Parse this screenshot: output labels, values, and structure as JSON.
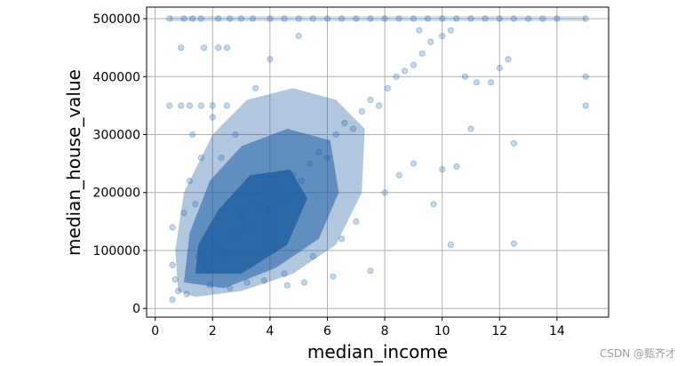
{
  "chart_data": {
    "type": "scatter",
    "title": "",
    "xlabel": "median_income",
    "ylabel": "median_house_value",
    "xlim": [
      -0.3,
      15.8
    ],
    "ylim": [
      -15000,
      520000
    ],
    "xticks": [
      0,
      2,
      4,
      6,
      8,
      10,
      12,
      14
    ],
    "yticks": [
      0,
      100000,
      200000,
      300000,
      400000,
      500000
    ],
    "grid": true,
    "legend": "none",
    "marker_color": "#1f5fa3",
    "marker_alpha": 0.1,
    "series": [
      {
        "points": [
          [
            0.5,
            500000
          ],
          [
            1.0,
            500000
          ],
          [
            1.3,
            500000
          ],
          [
            1.6,
            500000
          ],
          [
            2.2,
            500000
          ],
          [
            2.6,
            500000
          ],
          [
            3.0,
            500000
          ],
          [
            3.4,
            500000
          ],
          [
            4.0,
            500000
          ],
          [
            4.5,
            500000
          ],
          [
            5.0,
            500000
          ],
          [
            5.5,
            500000
          ],
          [
            6.0,
            500000
          ],
          [
            6.5,
            500000
          ],
          [
            7.0,
            500000
          ],
          [
            7.5,
            500000
          ],
          [
            8.0,
            500000
          ],
          [
            8.5,
            500000
          ],
          [
            9.0,
            500000
          ],
          [
            9.5,
            500000
          ],
          [
            10.0,
            500000
          ],
          [
            10.5,
            500000
          ],
          [
            11.0,
            500000
          ],
          [
            11.5,
            500000
          ],
          [
            12.0,
            500000
          ],
          [
            12.5,
            500000
          ],
          [
            13.0,
            500000
          ],
          [
            13.5,
            500000
          ],
          [
            14.0,
            500000
          ],
          [
            15.0,
            500000
          ],
          [
            0.9,
            450000
          ],
          [
            1.7,
            450000
          ],
          [
            2.2,
            450000
          ],
          [
            2.5,
            450000
          ],
          [
            0.9,
            350000
          ],
          [
            1.2,
            350000
          ],
          [
            1.6,
            350000
          ],
          [
            2.0,
            350000
          ],
          [
            2.5,
            350000
          ],
          [
            0.5,
            350000
          ],
          [
            0.6,
            140000
          ],
          [
            0.6,
            75000
          ],
          [
            0.7,
            50000
          ],
          [
            0.6,
            15000
          ],
          [
            0.8,
            30000
          ],
          [
            1.5,
            90000
          ],
          [
            1.8,
            70000
          ],
          [
            2.1,
            110000
          ],
          [
            2.4,
            95000
          ],
          [
            2.7,
            130000
          ],
          [
            3.0,
            160000
          ],
          [
            3.3,
            140000
          ],
          [
            3.6,
            180000
          ],
          [
            3.9,
            170000
          ],
          [
            4.2,
            210000
          ],
          [
            4.5,
            190000
          ],
          [
            4.8,
            230000
          ],
          [
            5.1,
            220000
          ],
          [
            5.4,
            250000
          ],
          [
            5.7,
            270000
          ],
          [
            6.0,
            260000
          ],
          [
            6.3,
            300000
          ],
          [
            6.6,
            320000
          ],
          [
            6.9,
            310000
          ],
          [
            7.2,
            340000
          ],
          [
            7.5,
            360000
          ],
          [
            7.8,
            350000
          ],
          [
            8.1,
            380000
          ],
          [
            8.4,
            400000
          ],
          [
            8.7,
            410000
          ],
          [
            9.0,
            420000
          ],
          [
            9.3,
            440000
          ],
          [
            9.6,
            460000
          ],
          [
            10.0,
            470000
          ],
          [
            10.3,
            480000
          ],
          [
            4.0,
            430000
          ],
          [
            5.0,
            470000
          ],
          [
            3.5,
            380000
          ],
          [
            2.8,
            300000
          ],
          [
            2.3,
            260000
          ],
          [
            6.5,
            120000
          ],
          [
            7.0,
            150000
          ],
          [
            5.5,
            90000
          ],
          [
            4.5,
            60000
          ],
          [
            3.2,
            45000
          ],
          [
            2.6,
            35000
          ],
          [
            1.9,
            40000
          ],
          [
            8.0,
            200000
          ],
          [
            8.5,
            230000
          ],
          [
            9.0,
            250000
          ],
          [
            9.7,
            180000
          ],
          [
            10.0,
            240000
          ],
          [
            10.5,
            245000
          ],
          [
            10.3,
            110000
          ],
          [
            9.2,
            480000
          ],
          [
            10.8,
            400000
          ],
          [
            11.2,
            390000
          ],
          [
            11.7,
            390000
          ],
          [
            12.0,
            415000
          ],
          [
            12.3,
            430000
          ],
          [
            12.5,
            285000
          ],
          [
            12.5,
            112000
          ],
          [
            11.0,
            310000
          ],
          [
            15.0,
            400000
          ],
          [
            15.0,
            350000
          ],
          [
            7.5,
            65000
          ],
          [
            6.2,
            55000
          ],
          [
            5.2,
            45000
          ],
          [
            4.6,
            40000
          ],
          [
            3.8,
            48000
          ],
          [
            1.1,
            25000
          ],
          [
            1.4,
            180000
          ],
          [
            1.2,
            220000
          ],
          [
            1.0,
            165000
          ],
          [
            1.6,
            260000
          ],
          [
            1.3,
            300000
          ],
          [
            2.0,
            330000
          ]
        ]
      }
    ]
  },
  "watermark": "CSDN @甄齐才"
}
